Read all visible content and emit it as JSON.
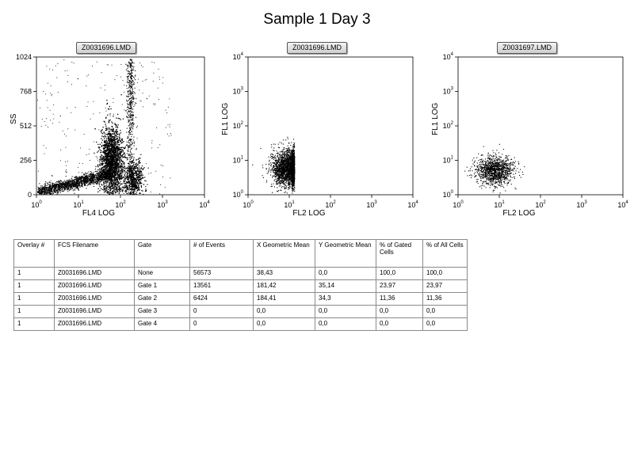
{
  "title": "Sample 1 Day 3",
  "plots": [
    {
      "label": "Z0031696.LMD",
      "xlabel": "FL4 LOG",
      "ylabel": "SS",
      "yticks": [
        "0",
        "256",
        "512",
        "768",
        "1024"
      ]
    },
    {
      "label": "Z0031696.LMD",
      "xlabel": "FL2 LOG",
      "ylabel": "FL1 LOG"
    },
    {
      "label": "Z0031697.LMD",
      "xlabel": "FL2 LOG",
      "ylabel": "FL1 LOG"
    }
  ],
  "log_tick_base": "10",
  "log_tick_exps": [
    "0",
    "1",
    "2",
    "3",
    "4"
  ],
  "chart_data": [
    {
      "type": "scatter",
      "title": "Z0031696.LMD",
      "xlabel": "FL4 LOG",
      "ylabel": "SS",
      "x_scale": "log",
      "xlim": [
        1,
        10000
      ],
      "ylim": [
        0,
        1024
      ],
      "clusters": [
        {
          "x_center": 30,
          "y_center": 60,
          "note_shape": "diagonal band rising to dense core"
        },
        {
          "x_center": 60,
          "y_center": 250
        },
        {
          "x_center": 200,
          "y_center": 120
        },
        {
          "x_center": 170,
          "y_center": 700
        }
      ]
    },
    {
      "type": "scatter",
      "title": "Z0031696.LMD",
      "xlabel": "FL2 LOG",
      "ylabel": "FL1 LOG",
      "x_scale": "log",
      "y_scale": "log",
      "xlim": [
        1,
        10000
      ],
      "ylim": [
        1,
        10000
      ],
      "clusters": [
        {
          "x_center": 10,
          "y_center": 6
        }
      ]
    },
    {
      "type": "scatter",
      "title": "Z0031697.LMD",
      "xlabel": "FL2 LOG",
      "ylabel": "FL1 LOG",
      "x_scale": "log",
      "y_scale": "log",
      "xlim": [
        1,
        10000
      ],
      "ylim": [
        1,
        10000
      ],
      "clusters": [
        {
          "x_center": 8,
          "y_center": 5
        }
      ]
    }
  ],
  "table": {
    "headers": [
      "Overlay #",
      "FCS Filename",
      "Gate",
      "# of Events",
      "X Geometric Mean",
      "Y Geometric Mean",
      "% of Gated Cells",
      "% of All Cells"
    ],
    "rows": [
      [
        "1",
        "Z0031696.LMD",
        "None",
        "56573",
        "38,43",
        "0,0",
        "100,0",
        "100,0"
      ],
      [
        "1",
        "Z0031696.LMD",
        "Gate 1",
        "13561",
        "181,42",
        "35,14",
        "23,97",
        "23,97"
      ],
      [
        "1",
        "Z0031696.LMD",
        "Gate 2",
        "6424",
        "184,41",
        "34,3",
        "11,36",
        "11,36"
      ],
      [
        "1",
        "Z0031696.LMD",
        "Gate 3",
        "0",
        "0,0",
        "0,0",
        "0,0",
        "0,0"
      ],
      [
        "1",
        "Z0031696.LMD",
        "Gate 4",
        "0",
        "0,0",
        "0,0",
        "0,0",
        "0,0"
      ]
    ]
  }
}
